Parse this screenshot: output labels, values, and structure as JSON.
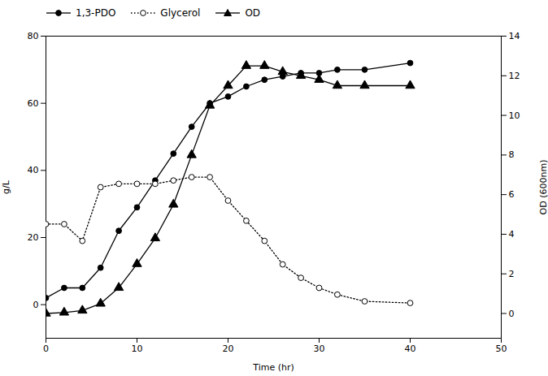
{
  "chart_data": {
    "type": "line",
    "xlabel": "Time (hr)",
    "ylabel": "g/L",
    "y2label": "OD (600nm)",
    "x": [
      0,
      2,
      4,
      6,
      8,
      10,
      12,
      14,
      16,
      18,
      20,
      22,
      24,
      26,
      28,
      30,
      32,
      35,
      40
    ],
    "xlim": [
      0,
      50
    ],
    "xticks": [
      0,
      10,
      20,
      30,
      40,
      50
    ],
    "ylim": [
      -10,
      80
    ],
    "yticks": [
      0,
      20,
      40,
      60,
      80
    ],
    "y2lim": [
      -1.25,
      14
    ],
    "y2ticks": [
      0,
      2,
      4,
      6,
      8,
      10,
      12,
      14
    ],
    "grid": false,
    "legend": "upper left",
    "series": [
      {
        "name": "1,3-PDO",
        "color": "black",
        "marker": "circle",
        "line_style": "solid",
        "values": [
          2,
          5,
          5,
          11,
          22,
          29,
          37,
          45,
          53,
          60,
          62,
          65,
          67,
          68,
          69,
          69,
          70,
          70,
          72
        ]
      },
      {
        "name": "Glycerol",
        "color": "black",
        "marker": "circle-open",
        "line_style": "dotted",
        "values": [
          24,
          24,
          19,
          35,
          36,
          36,
          36,
          37,
          38,
          38,
          31,
          25,
          19,
          12,
          8,
          5,
          3,
          1,
          0.5
        ]
      },
      {
        "name": "OD",
        "color": "black",
        "marker": "triangle",
        "line_style": "solid",
        "axis": "y2",
        "values": [
          0.0,
          0.05,
          0.15,
          0.5,
          1.3,
          2.5,
          3.8,
          5.5,
          8.0,
          10.5,
          11.5,
          12.5,
          12.5,
          12.2,
          12.0,
          11.8,
          11.5,
          11.5,
          11.5
        ]
      }
    ]
  }
}
